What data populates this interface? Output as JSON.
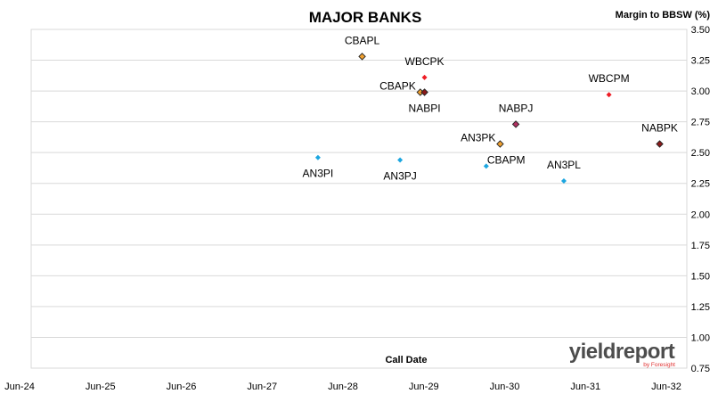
{
  "chart_data": {
    "type": "scatter",
    "title": "MAJOR BANKS",
    "ylabel": "Margin to BBSW (%)",
    "xlabel": "Call Date",
    "ylim": [
      0.75,
      3.5
    ],
    "yticks": [
      "3.50",
      "3.25",
      "3.00",
      "2.75",
      "2.50",
      "2.25",
      "2.00",
      "1.75",
      "1.50",
      "1.25",
      "1.00",
      "0.75"
    ],
    "xlim": [
      "2024-06-01",
      "2032-06-01"
    ],
    "xticks": [
      "Jun-24",
      "Jun-25",
      "Jun-26",
      "Jun-27",
      "Jun-28",
      "Jun-29",
      "Jun-30",
      "Jun-31",
      "Jun-32"
    ],
    "y_axis_side": "right",
    "grid": true,
    "legend": "none",
    "points": [
      {
        "label": "CBAPL",
        "x": "2028-06-15",
        "y": 3.28,
        "color": "#f0a030",
        "outlined": true,
        "label_pos": "above"
      },
      {
        "label": "WBCPK",
        "x": "2029-03-20",
        "y": 3.11,
        "color": "#ee1c25",
        "outlined": false,
        "label_pos": "above"
      },
      {
        "label": "CBAPK",
        "x": "2029-03-01",
        "y": 2.99,
        "color": "#f0a030",
        "outlined": true,
        "label_pos": "left"
      },
      {
        "label": "NABPI",
        "x": "2029-03-20",
        "y": 2.99,
        "color": "#8b1a1a",
        "outlined": true,
        "label_pos": "below"
      },
      {
        "label": "AN3PI",
        "x": "2027-12-01",
        "y": 2.46,
        "color": "#1ca6e0",
        "outlined": false,
        "label_pos": "below"
      },
      {
        "label": "AN3PJ",
        "x": "2028-12-01",
        "y": 2.44,
        "color": "#1ca6e0",
        "outlined": false,
        "label_pos": "below"
      },
      {
        "label": "NABPJ",
        "x": "2030-05-01",
        "y": 2.73,
        "color": "#b03060",
        "outlined": true,
        "label_pos": "above"
      },
      {
        "label": "AN3PK",
        "x": "2030-02-20",
        "y": 2.57,
        "color": "#f0a030",
        "outlined": true,
        "label_pos": "left"
      },
      {
        "label": "CBAPM",
        "x": "2029-12-20",
        "y": 2.39,
        "color": "#1ca6e0",
        "outlined": false,
        "label_pos": "right"
      },
      {
        "label": "AN3PL",
        "x": "2030-12-01",
        "y": 2.27,
        "color": "#1ca6e0",
        "outlined": false,
        "label_pos": "above"
      },
      {
        "label": "WBCPM",
        "x": "2031-06-20",
        "y": 2.97,
        "color": "#ee1c25",
        "outlined": false,
        "label_pos": "above"
      },
      {
        "label": "NABPK",
        "x": "2032-02-01",
        "y": 2.57,
        "color": "#8b1a1a",
        "outlined": true,
        "label_pos": "above"
      }
    ]
  },
  "logo": {
    "text": "yieldreport",
    "sub": "by Foresight"
  }
}
